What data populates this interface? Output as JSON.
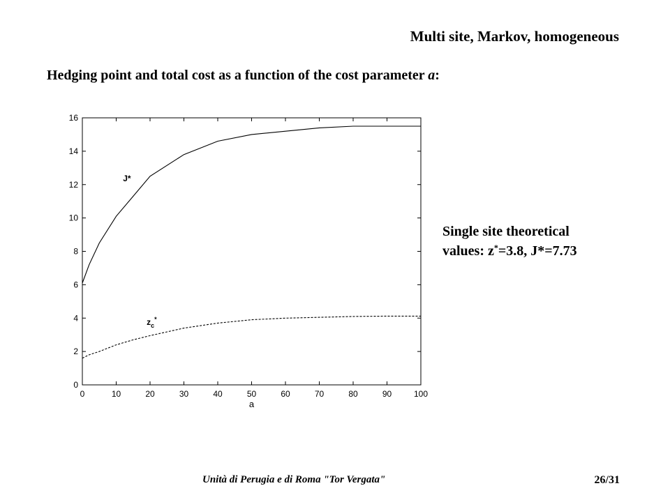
{
  "slide": {
    "header_title": "Multi site, Markov, homogeneous",
    "subtitle_main": "Hedging point and total cost as a function of the cost parameter ",
    "subtitle_param": "a",
    "subtitle_colon": ":",
    "note_line1": "Single site theoretical",
    "note_line2_prefix": "values: z",
    "note_line2_sup": "*",
    "note_line2_suffix": "=3.8, J*=7.73",
    "footer_text": "Unità di Perugia e di Roma \"Tor Vergata\"",
    "page_number": "26/31"
  },
  "chart_data": {
    "type": "line",
    "xlabel": "a",
    "ylabel": "",
    "xlim": [
      0,
      100
    ],
    "ylim": [
      0,
      16
    ],
    "xticks": [
      0,
      10,
      20,
      30,
      40,
      50,
      60,
      70,
      80,
      90,
      100
    ],
    "yticks": [
      0,
      2,
      4,
      6,
      8,
      10,
      12,
      14,
      16
    ],
    "grid": false,
    "series": [
      {
        "name": "J*",
        "style": "solid",
        "color": "#000000",
        "label_pos": [
          12,
          12.2
        ],
        "x": [
          0,
          2,
          5,
          10,
          15,
          20,
          30,
          40,
          50,
          60,
          70,
          80,
          90,
          100
        ],
        "y": [
          6.1,
          7.2,
          8.5,
          10.1,
          11.3,
          12.5,
          13.8,
          14.6,
          15.0,
          15.2,
          15.4,
          15.5,
          15.5,
          15.5
        ]
      },
      {
        "name": "z",
        "name_sub": "c",
        "name_sup": "*",
        "style": "dashed",
        "color": "#000000",
        "label_pos": [
          19,
          3.6
        ],
        "x": [
          0,
          2,
          5,
          10,
          15,
          20,
          30,
          40,
          50,
          60,
          70,
          80,
          90,
          100
        ],
        "y": [
          1.6,
          1.8,
          2.0,
          2.4,
          2.7,
          2.95,
          3.4,
          3.7,
          3.9,
          4.0,
          4.05,
          4.1,
          4.12,
          4.12
        ]
      }
    ]
  }
}
